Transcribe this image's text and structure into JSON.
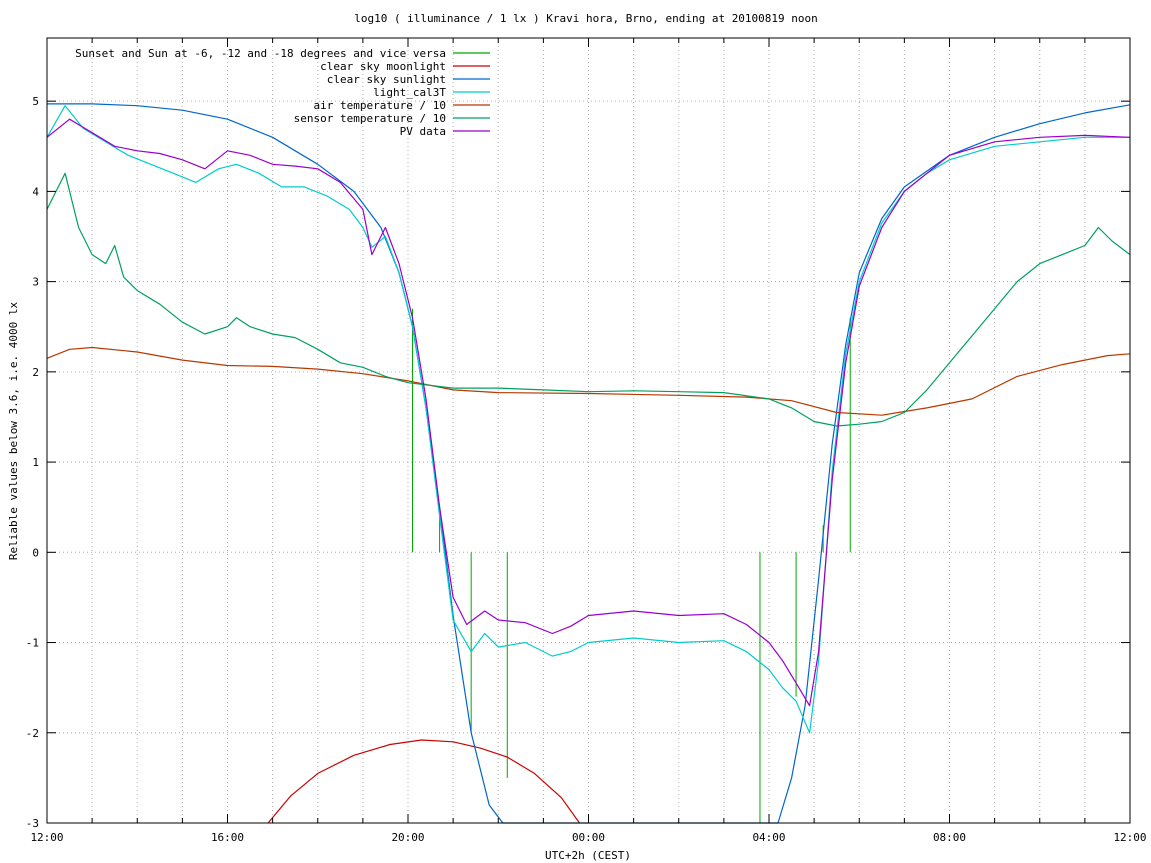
{
  "chart_data": {
    "type": "line",
    "title": "log10 ( illuminance / 1 lx ) Kravi hora, Brno, ending at 20100819 noon",
    "xlabel": "UTC+2h (CEST)",
    "ylabel": "Reliable values below 3.6, i.e. 4000 lx",
    "xlim": [
      12,
      36
    ],
    "ylim": [
      -3,
      5.7
    ],
    "x_ticks": [
      {
        "x": 12,
        "label": "12:00"
      },
      {
        "x": 16,
        "label": "16:00"
      },
      {
        "x": 20,
        "label": "20:00"
      },
      {
        "x": 24,
        "label": "00:00"
      },
      {
        "x": 28,
        "label": "04:00"
      },
      {
        "x": 32,
        "label": "08:00"
      },
      {
        "x": 36,
        "label": "12:00"
      }
    ],
    "y_ticks": [
      {
        "y": 5,
        "label": "5"
      },
      {
        "y": 4,
        "label": "4"
      },
      {
        "y": 3,
        "label": "3"
      },
      {
        "y": 2,
        "label": "2"
      },
      {
        "y": 1,
        "label": "1"
      },
      {
        "y": 0,
        "label": "0"
      },
      {
        "y": -1,
        "label": "-1"
      },
      {
        "y": -2,
        "label": "-2"
      },
      {
        "y": -3,
        "label": "-3"
      }
    ],
    "grid": true,
    "legend_position": "top-left",
    "series": [
      {
        "name": "Sunset and Sun at -6, -12 and -18 degrees and vice versa",
        "color": "#00aa00",
        "kind": "impulses",
        "bars": [
          [
            20.1,
            2.7
          ],
          [
            20.7,
            0.4
          ],
          [
            21.4,
            -2.0
          ],
          [
            22.2,
            -2.5
          ],
          [
            27.8,
            -3.0
          ],
          [
            28.6,
            -1.6
          ],
          [
            29.2,
            0.3
          ],
          [
            29.8,
            2.6
          ]
        ]
      },
      {
        "name": "clear sky moonlight",
        "color": "#cc0000",
        "points": [
          [
            16.9,
            -3.0
          ],
          [
            17.4,
            -2.7
          ],
          [
            18.0,
            -2.45
          ],
          [
            18.8,
            -2.25
          ],
          [
            19.6,
            -2.13
          ],
          [
            20.3,
            -2.08
          ],
          [
            21.0,
            -2.1
          ],
          [
            21.6,
            -2.17
          ],
          [
            22.2,
            -2.27
          ],
          [
            22.8,
            -2.45
          ],
          [
            23.4,
            -2.72
          ],
          [
            23.8,
            -3.0
          ]
        ]
      },
      {
        "name": "clear sky sunlight",
        "color": "#0066cc",
        "points": [
          [
            12.0,
            4.97
          ],
          [
            13.0,
            4.97
          ],
          [
            14.0,
            4.95
          ],
          [
            15.0,
            4.9
          ],
          [
            16.0,
            4.8
          ],
          [
            17.0,
            4.6
          ],
          [
            18.0,
            4.3
          ],
          [
            18.8,
            4.0
          ],
          [
            19.4,
            3.6
          ],
          [
            19.8,
            3.1
          ],
          [
            20.1,
            2.5
          ],
          [
            20.4,
            1.6
          ],
          [
            20.7,
            0.5
          ],
          [
            21.0,
            -0.7
          ],
          [
            21.4,
            -2.0
          ],
          [
            21.8,
            -2.8
          ],
          [
            22.1,
            -3.0
          ],
          [
            28.2,
            -3.0
          ],
          [
            28.5,
            -2.5
          ],
          [
            28.8,
            -1.7
          ],
          [
            29.1,
            -0.3
          ],
          [
            29.4,
            1.2
          ],
          [
            29.7,
            2.3
          ],
          [
            30.0,
            3.1
          ],
          [
            30.5,
            3.7
          ],
          [
            31.0,
            4.05
          ],
          [
            32.0,
            4.4
          ],
          [
            33.0,
            4.6
          ],
          [
            34.0,
            4.75
          ],
          [
            35.0,
            4.87
          ],
          [
            36.0,
            4.96
          ]
        ]
      },
      {
        "name": "light_cal3T",
        "color": "#00cccc",
        "points": [
          [
            12.0,
            4.6
          ],
          [
            12.4,
            4.95
          ],
          [
            12.8,
            4.7
          ],
          [
            13.3,
            4.55
          ],
          [
            13.8,
            4.4
          ],
          [
            14.3,
            4.3
          ],
          [
            14.8,
            4.2
          ],
          [
            15.3,
            4.1
          ],
          [
            15.8,
            4.25
          ],
          [
            16.2,
            4.3
          ],
          [
            16.7,
            4.2
          ],
          [
            17.2,
            4.05
          ],
          [
            17.7,
            4.05
          ],
          [
            18.2,
            3.95
          ],
          [
            18.7,
            3.8
          ],
          [
            19.0,
            3.6
          ],
          [
            19.2,
            3.38
          ],
          [
            19.5,
            3.5
          ],
          [
            19.8,
            3.1
          ],
          [
            20.1,
            2.5
          ],
          [
            20.4,
            1.6
          ],
          [
            20.7,
            0.4
          ],
          [
            21.0,
            -0.75
          ],
          [
            21.4,
            -1.1
          ],
          [
            21.7,
            -0.9
          ],
          [
            22.0,
            -1.05
          ],
          [
            22.6,
            -1.0
          ],
          [
            23.2,
            -1.15
          ],
          [
            23.6,
            -1.1
          ],
          [
            24.0,
            -1.0
          ],
          [
            25.0,
            -0.95
          ],
          [
            26.0,
            -1.0
          ],
          [
            27.0,
            -0.98
          ],
          [
            27.5,
            -1.1
          ],
          [
            28.0,
            -1.3
          ],
          [
            28.3,
            -1.5
          ],
          [
            28.6,
            -1.65
          ],
          [
            28.9,
            -2.0
          ],
          [
            29.1,
            -1.2
          ],
          [
            29.4,
            0.9
          ],
          [
            29.7,
            2.2
          ],
          [
            30.0,
            3.0
          ],
          [
            30.5,
            3.65
          ],
          [
            31.0,
            4.0
          ],
          [
            31.5,
            4.2
          ],
          [
            32.0,
            4.35
          ],
          [
            33.0,
            4.5
          ],
          [
            34.0,
            4.55
          ],
          [
            35.0,
            4.6
          ],
          [
            36.0,
            4.6
          ]
        ]
      },
      {
        "name": "air temperature / 10",
        "color": "#b83800",
        "points": [
          [
            12.0,
            2.15
          ],
          [
            12.5,
            2.25
          ],
          [
            13.0,
            2.27
          ],
          [
            14.0,
            2.22
          ],
          [
            15.0,
            2.13
          ],
          [
            16.0,
            2.07
          ],
          [
            17.0,
            2.06
          ],
          [
            18.0,
            2.03
          ],
          [
            19.0,
            1.98
          ],
          [
            20.0,
            1.9
          ],
          [
            21.0,
            1.8
          ],
          [
            22.0,
            1.77
          ],
          [
            24.0,
            1.76
          ],
          [
            26.0,
            1.74
          ],
          [
            27.5,
            1.72
          ],
          [
            28.5,
            1.68
          ],
          [
            29.5,
            1.55
          ],
          [
            30.5,
            1.52
          ],
          [
            31.5,
            1.6
          ],
          [
            32.5,
            1.7
          ],
          [
            33.5,
            1.95
          ],
          [
            34.5,
            2.08
          ],
          [
            35.5,
            2.18
          ],
          [
            36.0,
            2.2
          ]
        ]
      },
      {
        "name": "sensor temperature / 10",
        "color": "#00a060",
        "points": [
          [
            12.0,
            3.8
          ],
          [
            12.2,
            4.0
          ],
          [
            12.4,
            4.2
          ],
          [
            12.7,
            3.6
          ],
          [
            13.0,
            3.3
          ],
          [
            13.3,
            3.2
          ],
          [
            13.5,
            3.4
          ],
          [
            13.7,
            3.05
          ],
          [
            14.0,
            2.9
          ],
          [
            14.5,
            2.75
          ],
          [
            15.0,
            2.55
          ],
          [
            15.5,
            2.42
          ],
          [
            16.0,
            2.5
          ],
          [
            16.2,
            2.6
          ],
          [
            16.5,
            2.5
          ],
          [
            17.0,
            2.42
          ],
          [
            17.5,
            2.38
          ],
          [
            18.0,
            2.25
          ],
          [
            18.5,
            2.1
          ],
          [
            19.0,
            2.05
          ],
          [
            19.5,
            1.95
          ],
          [
            20.0,
            1.88
          ],
          [
            21.0,
            1.82
          ],
          [
            22.0,
            1.82
          ],
          [
            23.0,
            1.8
          ],
          [
            24.0,
            1.78
          ],
          [
            25.0,
            1.79
          ],
          [
            26.0,
            1.78
          ],
          [
            27.0,
            1.77
          ],
          [
            28.0,
            1.7
          ],
          [
            28.5,
            1.6
          ],
          [
            29.0,
            1.45
          ],
          [
            29.5,
            1.4
          ],
          [
            30.0,
            1.42
          ],
          [
            30.5,
            1.45
          ],
          [
            31.0,
            1.55
          ],
          [
            31.5,
            1.8
          ],
          [
            32.0,
            2.1
          ],
          [
            32.5,
            2.4
          ],
          [
            33.0,
            2.7
          ],
          [
            33.5,
            3.0
          ],
          [
            34.0,
            3.2
          ],
          [
            34.5,
            3.3
          ],
          [
            35.0,
            3.4
          ],
          [
            35.3,
            3.6
          ],
          [
            35.6,
            3.45
          ],
          [
            36.0,
            3.3
          ]
        ]
      },
      {
        "name": "PV data",
        "color": "#9900cc",
        "points": [
          [
            12.0,
            4.6
          ],
          [
            12.5,
            4.8
          ],
          [
            13.0,
            4.65
          ],
          [
            13.5,
            4.5
          ],
          [
            14.0,
            4.45
          ],
          [
            14.5,
            4.42
          ],
          [
            15.0,
            4.35
          ],
          [
            15.5,
            4.25
          ],
          [
            16.0,
            4.45
          ],
          [
            16.5,
            4.4
          ],
          [
            17.0,
            4.3
          ],
          [
            17.5,
            4.28
          ],
          [
            18.0,
            4.25
          ],
          [
            18.5,
            4.1
          ],
          [
            19.0,
            3.8
          ],
          [
            19.2,
            3.3
          ],
          [
            19.5,
            3.6
          ],
          [
            19.8,
            3.2
          ],
          [
            20.1,
            2.6
          ],
          [
            20.4,
            1.7
          ],
          [
            20.7,
            0.5
          ],
          [
            21.0,
            -0.5
          ],
          [
            21.3,
            -0.8
          ],
          [
            21.7,
            -0.65
          ],
          [
            22.0,
            -0.75
          ],
          [
            22.6,
            -0.78
          ],
          [
            23.2,
            -0.9
          ],
          [
            23.6,
            -0.82
          ],
          [
            24.0,
            -0.7
          ],
          [
            25.0,
            -0.65
          ],
          [
            26.0,
            -0.7
          ],
          [
            27.0,
            -0.68
          ],
          [
            27.5,
            -0.8
          ],
          [
            28.0,
            -1.0
          ],
          [
            28.3,
            -1.2
          ],
          [
            28.6,
            -1.45
          ],
          [
            28.9,
            -1.7
          ],
          [
            29.1,
            -1.1
          ],
          [
            29.4,
            0.8
          ],
          [
            29.7,
            2.1
          ],
          [
            30.0,
            2.95
          ],
          [
            30.5,
            3.6
          ],
          [
            31.0,
            4.0
          ],
          [
            31.5,
            4.2
          ],
          [
            32.0,
            4.4
          ],
          [
            33.0,
            4.55
          ],
          [
            34.0,
            4.6
          ],
          [
            35.0,
            4.62
          ],
          [
            36.0,
            4.6
          ]
        ]
      }
    ]
  }
}
